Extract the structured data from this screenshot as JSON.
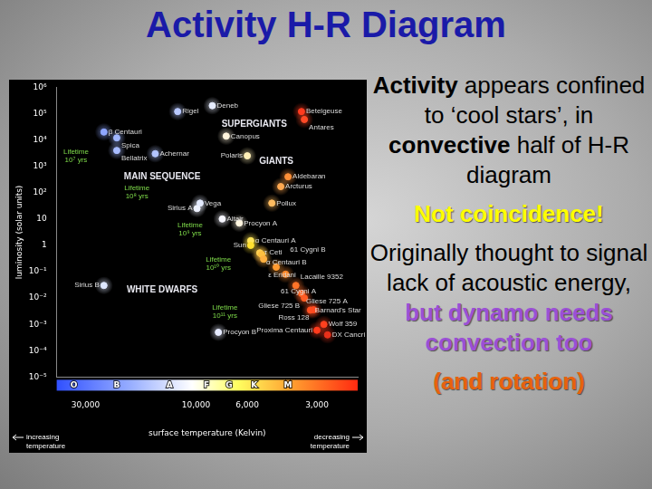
{
  "slide": {
    "title": "Activity H-R Diagram",
    "paragraphs": [
      [
        {
          "text": "Activity",
          "bold": true
        },
        {
          "text": " appears confined to ‘cool stars’, in "
        },
        {
          "text": "convective",
          "bold": true
        },
        {
          "text": " half of H-R diagram"
        }
      ],
      [
        {
          "text": "Not coincidence!",
          "bold": true,
          "color": "#ffff00"
        }
      ],
      [
        {
          "text": "Originally thought to signal lack of acoustic energy, "
        },
        {
          "text": "but dynamo needs convection too",
          "bold": true,
          "color": "#9b4fd6"
        }
      ],
      [
        {
          "text": "(and rotation)",
          "bold": true,
          "color": "#e8620c"
        }
      ]
    ]
  },
  "chart_data": {
    "type": "scatter",
    "x_label": "surface temperature (Kelvin)",
    "y_label": "luminosity (solar units)",
    "log": true,
    "grid": false,
    "xlim": [
      40000,
      2000
    ],
    "xticks": [
      {
        "value": 30000,
        "label": "30,000"
      },
      {
        "value": 10000,
        "label": "10,000"
      },
      {
        "value": 6000,
        "label": "6,000"
      },
      {
        "value": 3000,
        "label": "3,000"
      }
    ],
    "ylim": [
      1e-05,
      1000000
    ],
    "yticks": [
      {
        "value": 1e-05,
        "label": "10⁻⁵"
      },
      {
        "value": 0.0001,
        "label": "10⁻⁴"
      },
      {
        "value": 0.001,
        "label": "10⁻³"
      },
      {
        "value": 0.01,
        "label": "10⁻²"
      },
      {
        "value": 0.1,
        "label": "10⁻¹"
      },
      1,
      10,
      {
        "value": 100,
        "label": "10²"
      },
      {
        "value": 1000,
        "label": "10³"
      },
      {
        "value": 10000,
        "label": "10⁴"
      },
      {
        "value": 100000,
        "label": "10⁵"
      },
      {
        "value": 1000000,
        "label": "10⁶"
      }
    ],
    "point_labels": [
      "Deneb",
      "Rigel",
      "Betelgeuse",
      "Antares",
      "Canopus",
      "Polaris",
      "β Centauri",
      "Spica",
      "Bellatrix",
      "Achernar",
      "Aldebaran",
      "Arcturus",
      "Pollux",
      "Vega",
      "Sirius A",
      "Altair",
      "Procyon A",
      "α Centauri A",
      "Sun",
      "τ Ceti",
      "α Centauri B",
      "ε Eridani",
      "61 Cygni A",
      "61 Cygni B",
      "Lacaille 9352",
      "Gliese 725 A",
      "Gliese 725 B",
      "Barnard's Star",
      "Ross 128",
      "Wolf 359",
      "Proxima Centauri",
      "DX Cancri",
      "Sirius B",
      "Procyon B"
    ],
    "x": [
      8500,
      12000,
      3500,
      3400,
      7400,
      6000,
      25000,
      22000,
      22000,
      15000,
      4000,
      4300,
      4700,
      9600,
      9900,
      7700,
      6500,
      5800,
      5800,
      5300,
      5200,
      5100,
      4500,
      4100,
      3700,
      3500,
      3400,
      3200,
      3100,
      2800,
      3000,
      2700,
      25000,
      8000
    ],
    "values": [
      200000,
      120000,
      120000,
      60000,
      14000,
      2500,
      20000,
      12000,
      4000,
      3000,
      400,
      170,
      40,
      40,
      25,
      10,
      7,
      1.5,
      1,
      0.52,
      0.45,
      0.3,
      0.15,
      0.08,
      0.03,
      0.015,
      0.01,
      0.0035,
      0.0036,
      0.001,
      0.0006,
      0.0004,
      0.03,
      0.0005
    ],
    "colors": [
      "#e6ecff",
      "#b9c9ff",
      "#ff3b1f",
      "#ff4a26",
      "#fff4dc",
      "#fff0b8",
      "#8ea6ff",
      "#9fb6ff",
      "#a8bcff",
      "#b3c5ff",
      "#ff9038",
      "#ffa850",
      "#ffbc60",
      "#e4ebff",
      "#eef2ff",
      "#f6f6ff",
      "#fff6e0",
      "#ffe55a",
      "#ffe030",
      "#ffd050",
      "#ffc040",
      "#ffb040",
      "#ff9a30",
      "#ff8a2c",
      "#ff7428",
      "#ff6626",
      "#ff5c24",
      "#ff5022",
      "#ff4a20",
      "#ff401e",
      "#ff3a1c",
      "#e8301a",
      "#dde6ff",
      "#e6ebff"
    ],
    "annotations": [
      {
        "text": [
          "SUPERGIANTS"
        ],
        "x": 5600,
        "y": 40000,
        "color": "#e8e8f0"
      },
      {
        "text": [
          "GIANTS"
        ],
        "x": 4500,
        "y": 1500,
        "color": "#e8e8f0"
      },
      {
        "text": [
          "MAIN SEQUENCE"
        ],
        "x": 14000,
        "y": 400,
        "color": "#e8e8f0"
      },
      {
        "text": [
          "WHITE DWARFS"
        ],
        "x": 14000,
        "y": 0.02,
        "color": "#e8e8f0"
      },
      {
        "text": [
          "Lifetime",
          "10⁷ yrs"
        ],
        "x": 33000,
        "y": 2500,
        "color": "#7fdc4a"
      },
      {
        "text": [
          "Lifetime",
          "10⁸ yrs"
        ],
        "x": 18000,
        "y": 100,
        "color": "#7fdc4a"
      },
      {
        "text": [
          "Lifetime",
          "10⁹ yrs"
        ],
        "x": 10600,
        "y": 4,
        "color": "#7fdc4a"
      },
      {
        "text": [
          "Lifetime",
          "10¹⁰ yrs"
        ],
        "x": 8000,
        "y": 0.2,
        "color": "#7fdc4a"
      },
      {
        "text": [
          "Lifetime",
          "10¹¹ yrs"
        ],
        "x": 7500,
        "y": 0.003,
        "color": "#7fdc4a"
      }
    ],
    "spectral_classes": {
      "labels": [
        "O",
        "B",
        "A",
        "F",
        "G",
        "K",
        "M"
      ],
      "x": [
        33700,
        22000,
        13000,
        9000,
        7200,
        5600,
        4000
      ]
    },
    "axis_notes": {
      "left": [
        "increasing",
        "temperature"
      ],
      "right": [
        "decreasing",
        "temperature"
      ]
    }
  }
}
